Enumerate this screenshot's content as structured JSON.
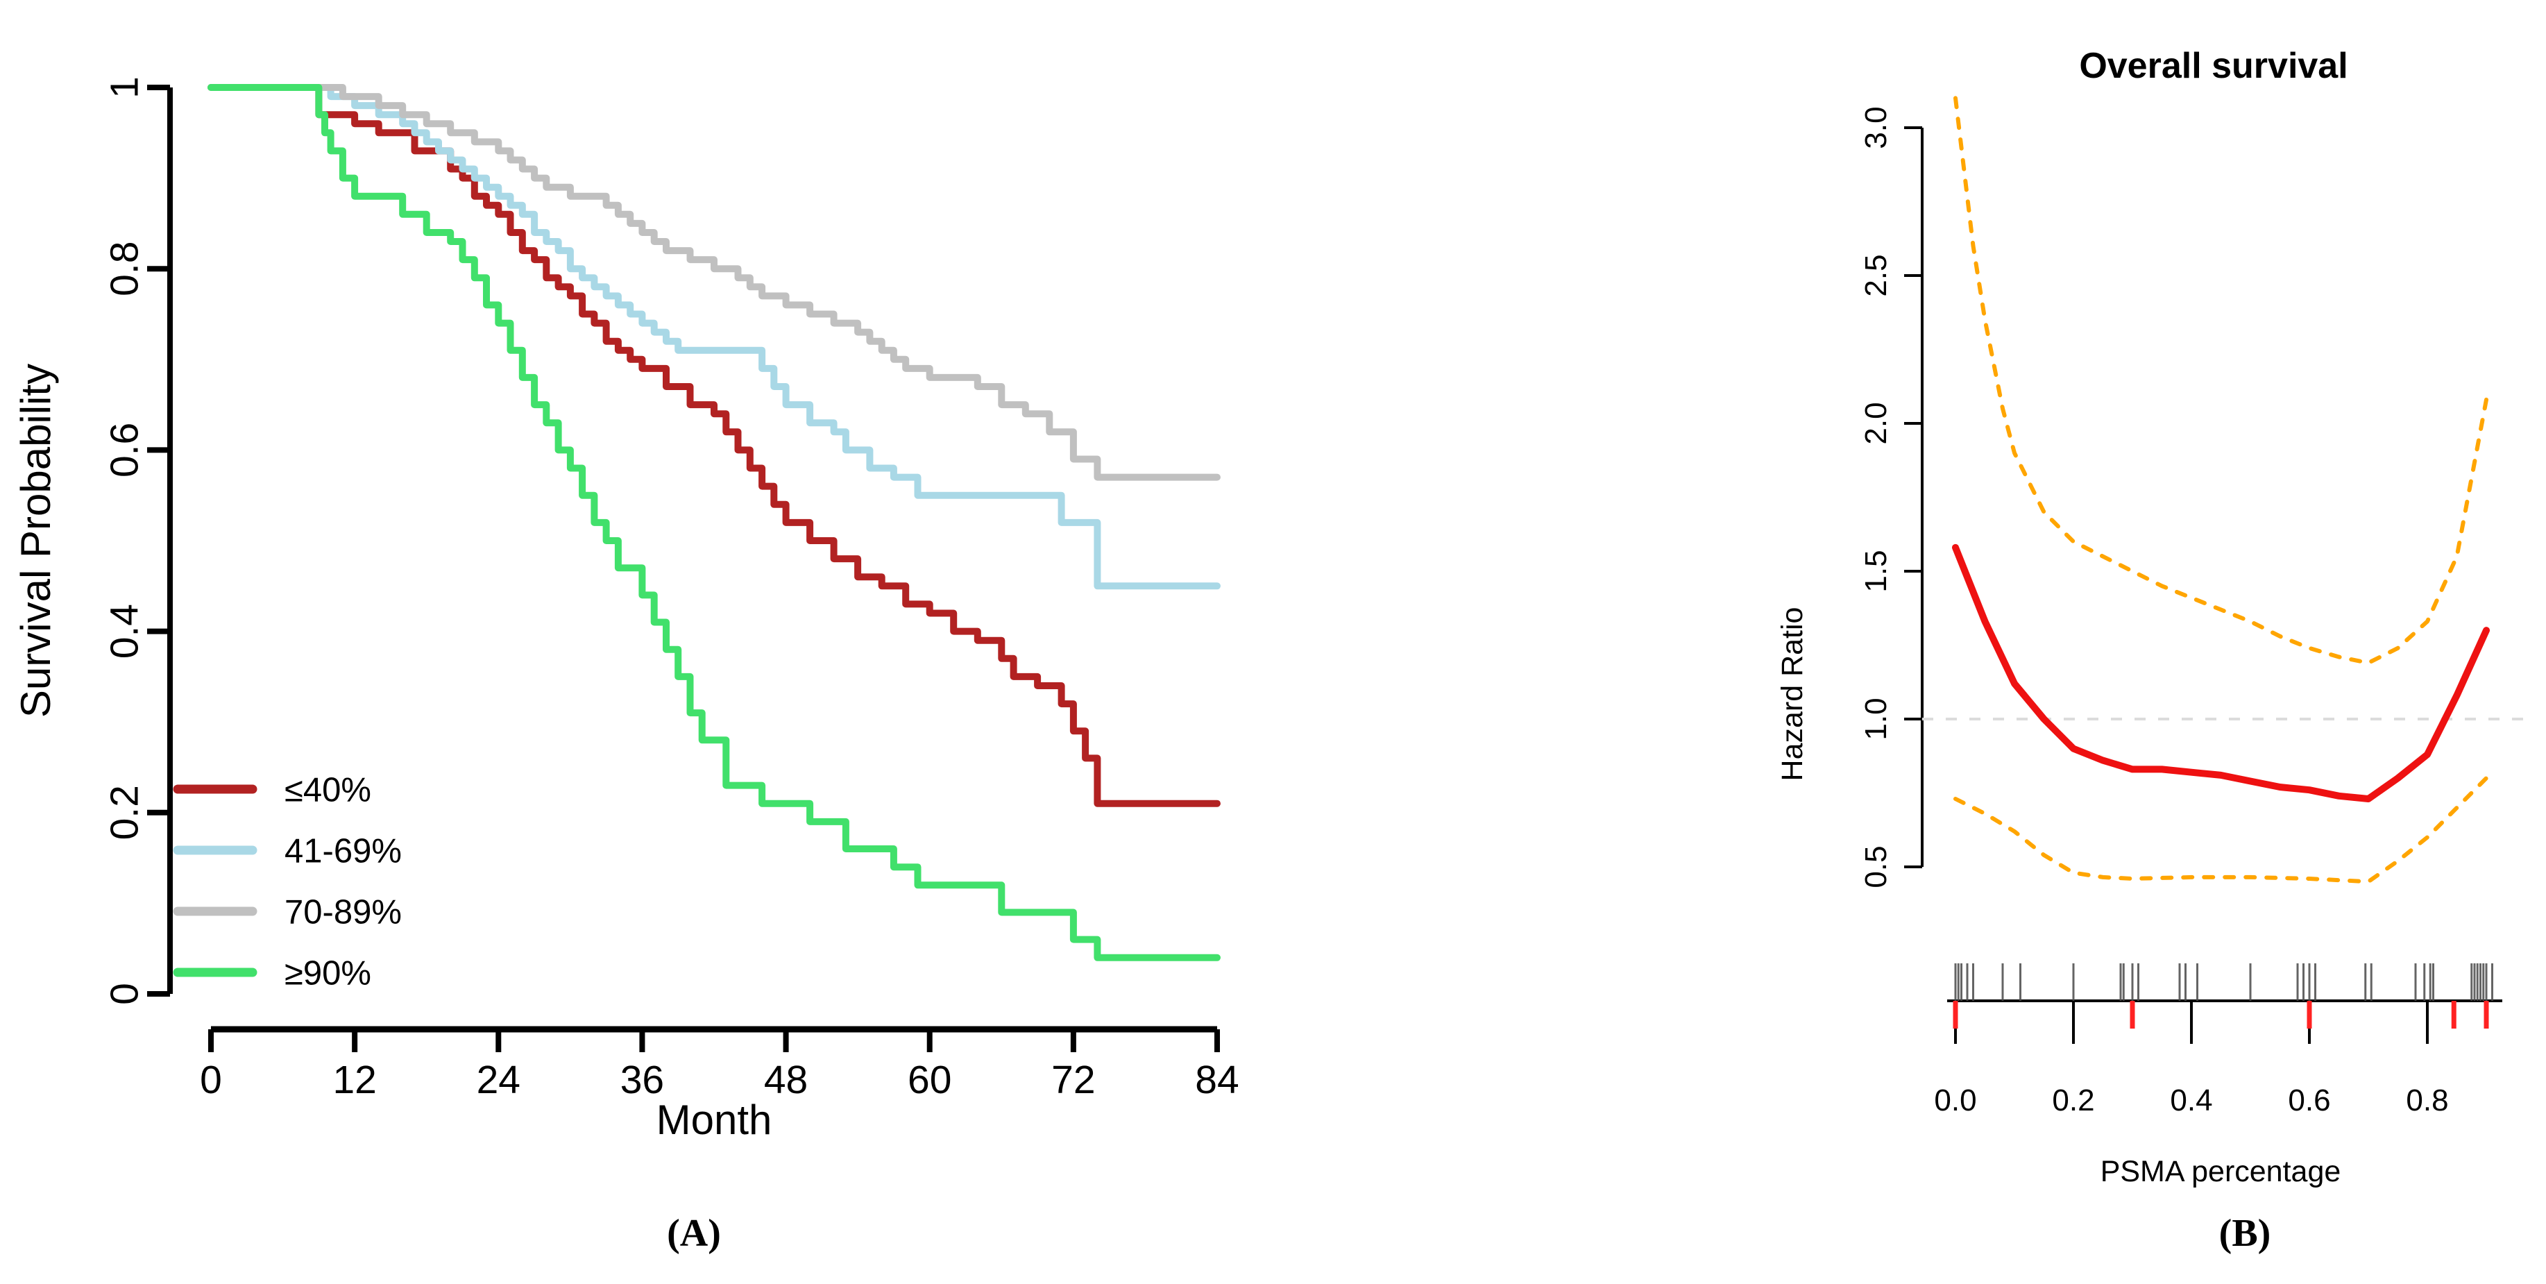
{
  "page": {
    "background": "#ffffff"
  },
  "colors": {
    "axis": "#000000",
    "km_le40": "#b22222",
    "km_41_69": "#a9d8e6",
    "km_70_89": "#c0c0c0",
    "km_ge90": "#41e06b",
    "hr_estimate": "#ee1111",
    "hr_ci": "#ffa500",
    "hr_reference": "#dcdcdc",
    "rug_black": "#4a4a4a",
    "rug_red": "#ff2222"
  },
  "chart_data": [
    {
      "id": "kaplan-meier",
      "type": "line",
      "subtype": "step",
      "title": "",
      "xlabel": "Month",
      "ylabel": "Survival Probability",
      "caption": "(A)",
      "xlim": [
        0,
        84
      ],
      "ylim": [
        0,
        1
      ],
      "x_ticks": [
        0,
        12,
        24,
        36,
        48,
        60,
        72,
        84
      ],
      "y_ticks": [
        1,
        0.8,
        0.6,
        0.4,
        0.2,
        0
      ],
      "grid": false,
      "legend_position": "bottom-left",
      "series": [
        {
          "name": "≤40%",
          "color": "#b22222",
          "steps": [
            [
              0,
              1.0
            ],
            [
              9,
              0.97
            ],
            [
              12,
              0.96
            ],
            [
              14,
              0.95
            ],
            [
              17,
              0.93
            ],
            [
              20,
              0.91
            ],
            [
              21,
              0.9
            ],
            [
              22,
              0.88
            ],
            [
              23,
              0.87
            ],
            [
              24,
              0.86
            ],
            [
              25,
              0.84
            ],
            [
              26,
              0.82
            ],
            [
              27,
              0.81
            ],
            [
              28,
              0.79
            ],
            [
              29,
              0.78
            ],
            [
              30,
              0.77
            ],
            [
              31,
              0.75
            ],
            [
              32,
              0.74
            ],
            [
              33,
              0.72
            ],
            [
              34,
              0.71
            ],
            [
              35,
              0.7
            ],
            [
              36,
              0.69
            ],
            [
              38,
              0.67
            ],
            [
              40,
              0.65
            ],
            [
              42,
              0.64
            ],
            [
              43,
              0.62
            ],
            [
              44,
              0.6
            ],
            [
              45,
              0.58
            ],
            [
              46,
              0.56
            ],
            [
              47,
              0.54
            ],
            [
              48,
              0.52
            ],
            [
              50,
              0.5
            ],
            [
              52,
              0.48
            ],
            [
              54,
              0.46
            ],
            [
              56,
              0.45
            ],
            [
              58,
              0.43
            ],
            [
              60,
              0.42
            ],
            [
              62,
              0.4
            ],
            [
              64,
              0.39
            ],
            [
              66,
              0.37
            ],
            [
              67,
              0.35
            ],
            [
              69,
              0.34
            ],
            [
              71,
              0.32
            ],
            [
              72,
              0.29
            ],
            [
              73,
              0.26
            ],
            [
              74,
              0.21
            ],
            [
              84,
              0.21
            ]
          ]
        },
        {
          "name": "41-69%",
          "color": "#a9d8e6",
          "steps": [
            [
              0,
              1.0
            ],
            [
              10,
              0.99
            ],
            [
              12,
              0.98
            ],
            [
              14,
              0.97
            ],
            [
              16,
              0.96
            ],
            [
              17,
              0.95
            ],
            [
              18,
              0.94
            ],
            [
              19,
              0.93
            ],
            [
              20,
              0.92
            ],
            [
              21,
              0.91
            ],
            [
              22,
              0.9
            ],
            [
              23,
              0.89
            ],
            [
              24,
              0.88
            ],
            [
              25,
              0.87
            ],
            [
              26,
              0.86
            ],
            [
              27,
              0.84
            ],
            [
              28,
              0.83
            ],
            [
              29,
              0.82
            ],
            [
              30,
              0.8
            ],
            [
              31,
              0.79
            ],
            [
              32,
              0.78
            ],
            [
              33,
              0.77
            ],
            [
              34,
              0.76
            ],
            [
              35,
              0.75
            ],
            [
              36,
              0.74
            ],
            [
              37,
              0.73
            ],
            [
              38,
              0.72
            ],
            [
              39,
              0.71
            ],
            [
              46,
              0.69
            ],
            [
              47,
              0.67
            ],
            [
              48,
              0.65
            ],
            [
              50,
              0.63
            ],
            [
              52,
              0.62
            ],
            [
              53,
              0.6
            ],
            [
              55,
              0.58
            ],
            [
              57,
              0.57
            ],
            [
              59,
              0.55
            ],
            [
              71,
              0.52
            ],
            [
              74,
              0.45
            ],
            [
              84,
              0.45
            ]
          ]
        },
        {
          "name": "70-89%",
          "color": "#c0c0c0",
          "steps": [
            [
              0,
              1.0
            ],
            [
              11,
              0.99
            ],
            [
              14,
              0.98
            ],
            [
              16,
              0.97
            ],
            [
              18,
              0.96
            ],
            [
              20,
              0.95
            ],
            [
              22,
              0.94
            ],
            [
              24,
              0.93
            ],
            [
              25,
              0.92
            ],
            [
              26,
              0.91
            ],
            [
              27,
              0.9
            ],
            [
              28,
              0.89
            ],
            [
              30,
              0.88
            ],
            [
              33,
              0.87
            ],
            [
              34,
              0.86
            ],
            [
              35,
              0.85
            ],
            [
              36,
              0.84
            ],
            [
              37,
              0.83
            ],
            [
              38,
              0.82
            ],
            [
              40,
              0.81
            ],
            [
              42,
              0.8
            ],
            [
              44,
              0.79
            ],
            [
              45,
              0.78
            ],
            [
              46,
              0.77
            ],
            [
              48,
              0.76
            ],
            [
              50,
              0.75
            ],
            [
              52,
              0.74
            ],
            [
              54,
              0.73
            ],
            [
              55,
              0.72
            ],
            [
              56,
              0.71
            ],
            [
              57,
              0.7
            ],
            [
              58,
              0.69
            ],
            [
              60,
              0.68
            ],
            [
              64,
              0.67
            ],
            [
              66,
              0.65
            ],
            [
              68,
              0.64
            ],
            [
              70,
              0.62
            ],
            [
              72,
              0.59
            ],
            [
              74,
              0.57
            ],
            [
              84,
              0.57
            ]
          ]
        },
        {
          "name": "≥90%",
          "color": "#41e06b",
          "steps": [
            [
              0,
              1.0
            ],
            [
              9,
              0.97
            ],
            [
              9.5,
              0.95
            ],
            [
              10,
              0.93
            ],
            [
              11,
              0.9
            ],
            [
              12,
              0.88
            ],
            [
              16,
              0.86
            ],
            [
              18,
              0.84
            ],
            [
              20,
              0.83
            ],
            [
              21,
              0.81
            ],
            [
              22,
              0.79
            ],
            [
              23,
              0.76
            ],
            [
              24,
              0.74
            ],
            [
              25,
              0.71
            ],
            [
              26,
              0.68
            ],
            [
              27,
              0.65
            ],
            [
              28,
              0.63
            ],
            [
              29,
              0.6
            ],
            [
              30,
              0.58
            ],
            [
              31,
              0.55
            ],
            [
              32,
              0.52
            ],
            [
              33,
              0.5
            ],
            [
              34,
              0.47
            ],
            [
              36,
              0.44
            ],
            [
              37,
              0.41
            ],
            [
              38,
              0.38
            ],
            [
              39,
              0.35
            ],
            [
              40,
              0.31
            ],
            [
              41,
              0.28
            ],
            [
              43,
              0.23
            ],
            [
              46,
              0.21
            ],
            [
              50,
              0.19
            ],
            [
              53,
              0.16
            ],
            [
              57,
              0.14
            ],
            [
              59,
              0.12
            ],
            [
              66,
              0.09
            ],
            [
              72,
              0.06
            ],
            [
              74,
              0.04
            ],
            [
              84,
              0.04
            ]
          ]
        }
      ]
    },
    {
      "id": "hazard-ratio-spline",
      "type": "line",
      "title": "Overall survival",
      "xlabel": "PSMA percentage",
      "ylabel": "Hazard Ratio",
      "caption": "(B)",
      "xlim": [
        0,
        0.92
      ],
      "ylim": [
        0.42,
        3.12
      ],
      "x_ticks": [
        0.0,
        0.2,
        0.4,
        0.6,
        0.8
      ],
      "y_ticks": [
        0.5,
        1.0,
        1.5,
        2.0,
        2.5,
        3.0
      ],
      "grid": false,
      "reference_line_y": 1.0,
      "series": [
        {
          "name": "hazard-ratio-estimate",
          "color": "#ee1111",
          "style": "solid",
          "points": [
            [
              0,
              1.58
            ],
            [
              0.05,
              1.33
            ],
            [
              0.1,
              1.12
            ],
            [
              0.15,
              1.0
            ],
            [
              0.2,
              0.9
            ],
            [
              0.25,
              0.86
            ],
            [
              0.3,
              0.83
            ],
            [
              0.35,
              0.83
            ],
            [
              0.4,
              0.82
            ],
            [
              0.45,
              0.81
            ],
            [
              0.5,
              0.79
            ],
            [
              0.55,
              0.77
            ],
            [
              0.6,
              0.76
            ],
            [
              0.65,
              0.74
            ],
            [
              0.7,
              0.73
            ],
            [
              0.75,
              0.8
            ],
            [
              0.8,
              0.88
            ],
            [
              0.85,
              1.08
            ],
            [
              0.9,
              1.3
            ]
          ]
        },
        {
          "name": "upper-confidence-band",
          "color": "#ffa500",
          "style": "dashed",
          "points": [
            [
              0,
              3.1
            ],
            [
              0.03,
              2.6
            ],
            [
              0.05,
              2.35
            ],
            [
              0.08,
              2.05
            ],
            [
              0.1,
              1.9
            ],
            [
              0.15,
              1.7
            ],
            [
              0.2,
              1.6
            ],
            [
              0.25,
              1.55
            ],
            [
              0.3,
              1.5
            ],
            [
              0.35,
              1.45
            ],
            [
              0.4,
              1.41
            ],
            [
              0.45,
              1.37
            ],
            [
              0.5,
              1.33
            ],
            [
              0.55,
              1.28
            ],
            [
              0.6,
              1.24
            ],
            [
              0.65,
              1.21
            ],
            [
              0.7,
              1.19
            ],
            [
              0.75,
              1.24
            ],
            [
              0.8,
              1.33
            ],
            [
              0.85,
              1.55
            ],
            [
              0.9,
              2.08
            ]
          ]
        },
        {
          "name": "lower-confidence-band",
          "color": "#ffa500",
          "style": "dashed",
          "points": [
            [
              0,
              0.73
            ],
            [
              0.05,
              0.68
            ],
            [
              0.1,
              0.62
            ],
            [
              0.15,
              0.54
            ],
            [
              0.2,
              0.48
            ],
            [
              0.25,
              0.465
            ],
            [
              0.3,
              0.46
            ],
            [
              0.4,
              0.465
            ],
            [
              0.5,
              0.465
            ],
            [
              0.6,
              0.46
            ],
            [
              0.7,
              0.45
            ],
            [
              0.75,
              0.52
            ],
            [
              0.8,
              0.6
            ],
            [
              0.85,
              0.7
            ],
            [
              0.9,
              0.8
            ]
          ]
        }
      ],
      "rug": {
        "black_ticks": [
          0.0,
          0.005,
          0.01,
          0.02,
          0.03,
          0.08,
          0.11,
          0.2,
          0.28,
          0.285,
          0.3,
          0.31,
          0.38,
          0.39,
          0.41,
          0.5,
          0.58,
          0.59,
          0.6,
          0.61,
          0.695,
          0.705,
          0.78,
          0.795,
          0.805,
          0.81,
          0.875,
          0.88,
          0.885,
          0.89,
          0.895,
          0.9,
          0.91
        ],
        "red_ticks": [
          0.0,
          0.3,
          0.6,
          0.845,
          0.9
        ]
      }
    }
  ]
}
